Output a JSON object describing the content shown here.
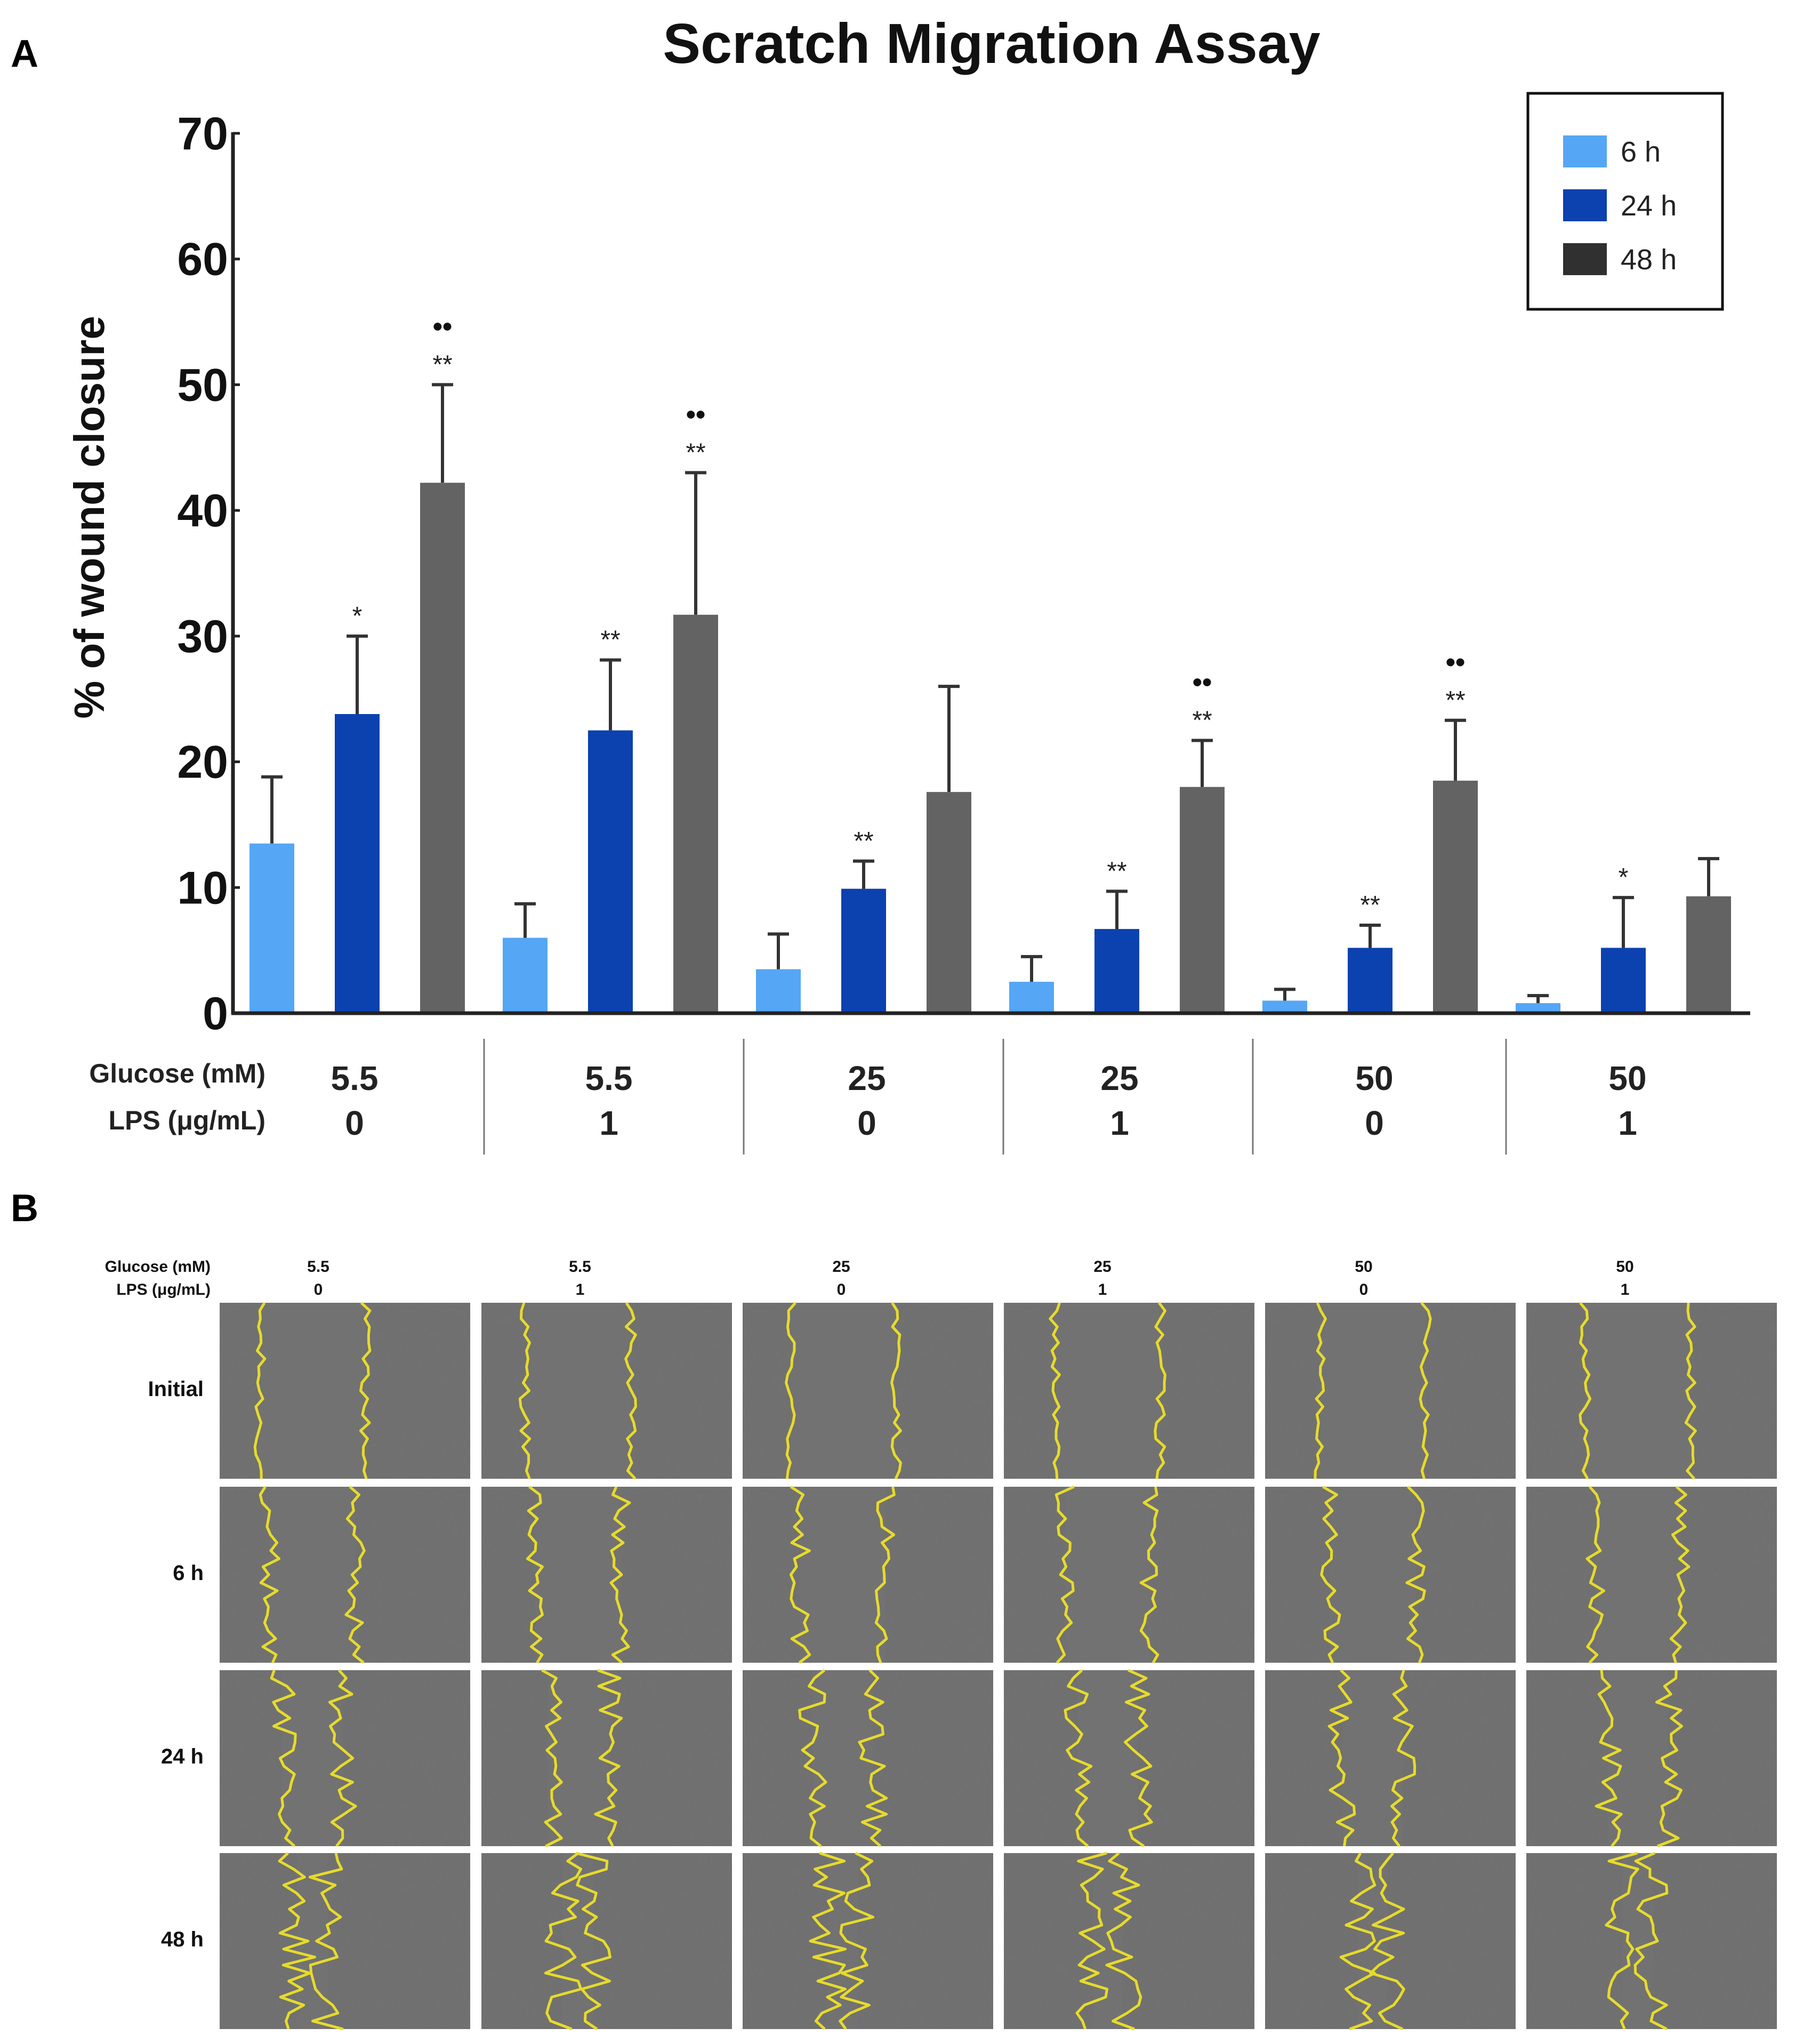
{
  "panel_labels": {
    "a": "A",
    "b": "B"
  },
  "colors": {
    "h6": "#55a6f5",
    "h24": "#0c41b0",
    "h48": "#636363",
    "edge": "#e6db2c",
    "micro": "#6f6f6f"
  },
  "chart_data": {
    "type": "bar",
    "title": "Scratch Migration Assay",
    "ylabel": "% of wound closure",
    "xlabel": "",
    "ylim": [
      0,
      70
    ],
    "yticks": [
      "0",
      "10",
      "20",
      "30",
      "40",
      "50",
      "60",
      "70"
    ],
    "condition_label_glucose": "Glucose (mM)",
    "condition_label_lps": "LPS (μg/mL)",
    "groups": [
      {
        "glucose": "5.5",
        "lps": "0"
      },
      {
        "glucose": "5.5",
        "lps": "1"
      },
      {
        "glucose": "25",
        "lps": "0"
      },
      {
        "glucose": "25",
        "lps": "1"
      },
      {
        "glucose": "50",
        "lps": "0"
      },
      {
        "glucose": "50",
        "lps": "1"
      }
    ],
    "series": [
      {
        "name": "6 h",
        "color": "#55a6f5",
        "values": [
          13.5,
          6.0,
          3.5,
          2.5,
          1.0,
          0.8
        ],
        "errors": [
          5.3,
          2.7,
          2.8,
          2.0,
          0.9,
          0.6
        ],
        "stars": [
          "",
          "",
          "",
          "",
          "",
          ""
        ],
        "dots": [
          "",
          "",
          "",
          "",
          "",
          ""
        ]
      },
      {
        "name": "24 h",
        "color": "#0c41b0",
        "values": [
          23.8,
          22.5,
          9.9,
          6.7,
          5.2,
          5.2
        ],
        "errors": [
          6.2,
          5.6,
          2.2,
          3.0,
          1.8,
          4.0
        ],
        "stars": [
          "*",
          "**",
          "**",
          "**",
          "**",
          "*"
        ],
        "dots": [
          "",
          "",
          "",
          "",
          "",
          ""
        ]
      },
      {
        "name": "48 h",
        "color": "#636363",
        "values": [
          42.2,
          31.7,
          17.6,
          18.0,
          18.5,
          9.3
        ],
        "errors": [
          7.8,
          11.3,
          8.4,
          3.7,
          4.8,
          3.0
        ],
        "stars": [
          "**",
          "**",
          "",
          "**",
          "**",
          ""
        ],
        "dots": [
          "••",
          "••",
          "",
          "••",
          "••",
          ""
        ]
      }
    ],
    "legend": [
      "6 h",
      "24 h",
      "48 h"
    ],
    "legend_position": "top-right"
  },
  "panel_b": {
    "header_glucose": "Glucose (mM)",
    "header_lps": "LPS (μg/mL)",
    "columns": [
      {
        "glucose": "5.5",
        "lps": "0"
      },
      {
        "glucose": "5.5",
        "lps": "1"
      },
      {
        "glucose": "25",
        "lps": "0"
      },
      {
        "glucose": "25",
        "lps": "1"
      },
      {
        "glucose": "50",
        "lps": "0"
      },
      {
        "glucose": "50",
        "lps": "1"
      }
    ],
    "rows": [
      "Initial",
      "6 h",
      "24 h",
      "48 h"
    ]
  }
}
